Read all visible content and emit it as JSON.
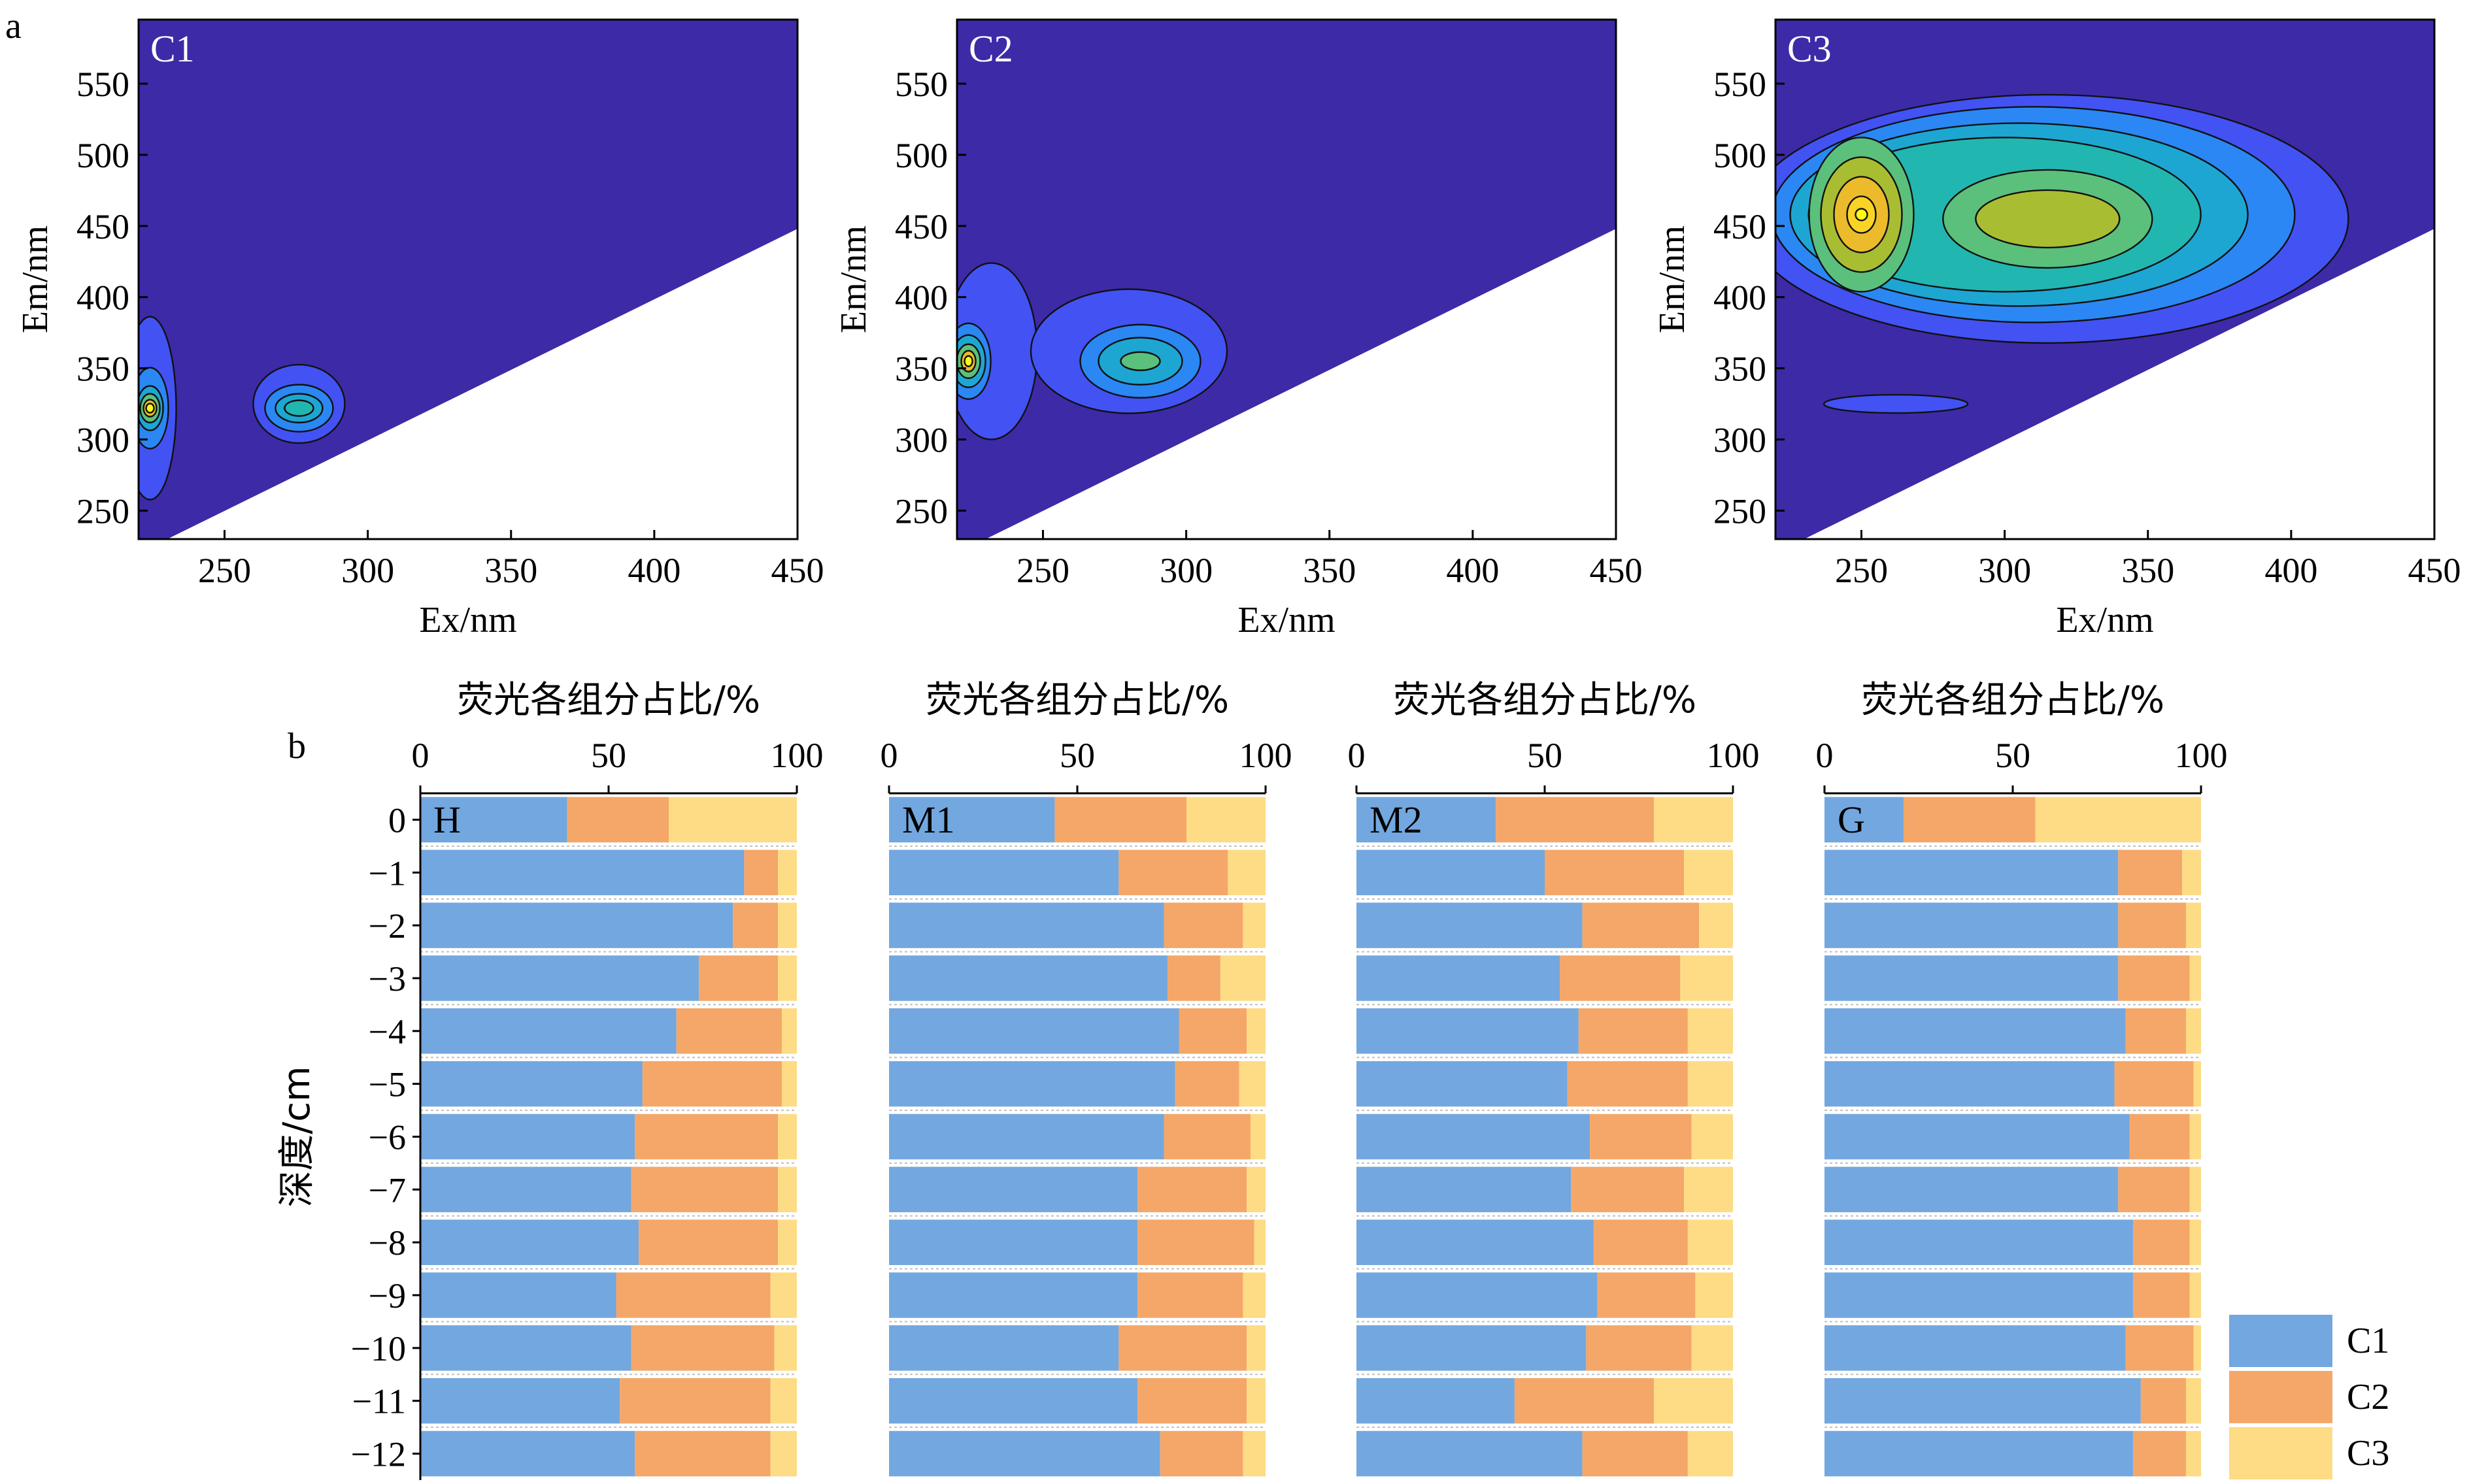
{
  "figure": {
    "panel_a_letter": "a",
    "panel_b_letter": "b"
  },
  "colors": {
    "C1": "#73a7df",
    "C2": "#f4a768",
    "C3": "#fddc85",
    "eem_background": "#3d2aa7",
    "gridline": "#bfbfbf"
  },
  "chart_data": [
    {
      "type": "heatmap",
      "panel": "C1",
      "label": "C1",
      "xlabel": "Ex/nm",
      "ylabel": "Em/nm",
      "xlim": [
        220,
        450
      ],
      "ylim": [
        230,
        595
      ],
      "xticks": [
        250,
        300,
        350,
        400,
        450
      ],
      "yticks": [
        250,
        300,
        350,
        400,
        450,
        500,
        550
      ],
      "peaks": [
        {
          "ex": 224,
          "em": 322,
          "relative_intensity": 1.0
        },
        {
          "ex": 275,
          "em": 322,
          "relative_intensity": 0.5
        }
      ]
    },
    {
      "type": "heatmap",
      "panel": "C2",
      "label": "C2",
      "xlabel": "Ex/nm",
      "ylabel": "Em/nm",
      "xlim": [
        220,
        450
      ],
      "ylim": [
        230,
        595
      ],
      "xticks": [
        250,
        300,
        350,
        400,
        450
      ],
      "yticks": [
        250,
        300,
        350,
        400,
        450,
        500,
        550
      ],
      "peaks": [
        {
          "ex": 224,
          "em": 355,
          "relative_intensity": 1.0
        },
        {
          "ex": 283,
          "em": 355,
          "relative_intensity": 0.55
        }
      ]
    },
    {
      "type": "heatmap",
      "panel": "C3",
      "label": "C3",
      "xlabel": "Ex/nm",
      "ylabel": "Em/nm",
      "xlim": [
        220,
        450
      ],
      "ylim": [
        230,
        595
      ],
      "xticks": [
        250,
        300,
        350,
        400,
        450
      ],
      "yticks": [
        250,
        300,
        350,
        400,
        450,
        500,
        550
      ],
      "peaks": [
        {
          "ex": 250,
          "em": 458,
          "relative_intensity": 1.0
        },
        {
          "ex": 315,
          "em": 455,
          "relative_intensity": 0.62
        }
      ]
    },
    {
      "type": "bar",
      "stacked": true,
      "orientation": "horizontal",
      "title": "荧光各组分占比/%",
      "ylabel": "深度/cm",
      "xlim": [
        0,
        100
      ],
      "xticks": [
        0,
        50,
        100
      ],
      "categories": [
        "0",
        "−1",
        "−2",
        "−3",
        "−4",
        "−5",
        "−6",
        "−7",
        "−8",
        "−9",
        "−10",
        "−11",
        "−12"
      ],
      "series_names": [
        "C1",
        "C2",
        "C3"
      ],
      "legend_position": "bottom-right",
      "panels": [
        {
          "name": "H",
          "series": [
            {
              "name": "C1",
              "values": [
                39,
                86,
                83,
                74,
                68,
                59,
                57,
                56,
                58,
                52,
                56,
                53,
                57
              ]
            },
            {
              "name": "C2",
              "values": [
                27,
                9,
                12,
                21,
                28,
                37,
                38,
                39,
                37,
                41,
                38,
                40,
                36
              ]
            },
            {
              "name": "C3",
              "values": [
                34,
                5,
                5,
                5,
                4,
                4,
                5,
                5,
                5,
                7,
                6,
                7,
                7
              ]
            }
          ]
        },
        {
          "name": "M1",
          "series": [
            {
              "name": "C1",
              "values": [
                44,
                61,
                73,
                74,
                77,
                76,
                73,
                66,
                66,
                66,
                61,
                66,
                72
              ]
            },
            {
              "name": "C2",
              "values": [
                35,
                29,
                21,
                14,
                18,
                17,
                23,
                29,
                31,
                28,
                34,
                29,
                22
              ]
            },
            {
              "name": "C3",
              "values": [
                21,
                10,
                6,
                12,
                5,
                7,
                4,
                5,
                3,
                6,
                5,
                5,
                6
              ]
            }
          ]
        },
        {
          "name": "M2",
          "series": [
            {
              "name": "C1",
              "values": [
                37,
                50,
                60,
                54,
                59,
                56,
                62,
                57,
                63,
                64,
                61,
                42,
                60
              ]
            },
            {
              "name": "C2",
              "values": [
                42,
                37,
                31,
                32,
                29,
                32,
                27,
                30,
                25,
                26,
                28,
                37,
                28
              ]
            },
            {
              "name": "C3",
              "values": [
                21,
                13,
                9,
                14,
                12,
                12,
                11,
                13,
                12,
                10,
                11,
                21,
                12
              ]
            }
          ]
        },
        {
          "name": "G",
          "series": [
            {
              "name": "C1",
              "values": [
                21,
                78,
                78,
                78,
                80,
                77,
                81,
                78,
                82,
                82,
                80,
                84,
                82
              ]
            },
            {
              "name": "C2",
              "values": [
                35,
                17,
                18,
                19,
                16,
                21,
                16,
                19,
                15,
                15,
                18,
                12,
                14
              ]
            },
            {
              "name": "C3",
              "values": [
                44,
                5,
                4,
                3,
                4,
                2,
                3,
                3,
                3,
                3,
                2,
                4,
                4
              ]
            }
          ]
        }
      ]
    }
  ]
}
